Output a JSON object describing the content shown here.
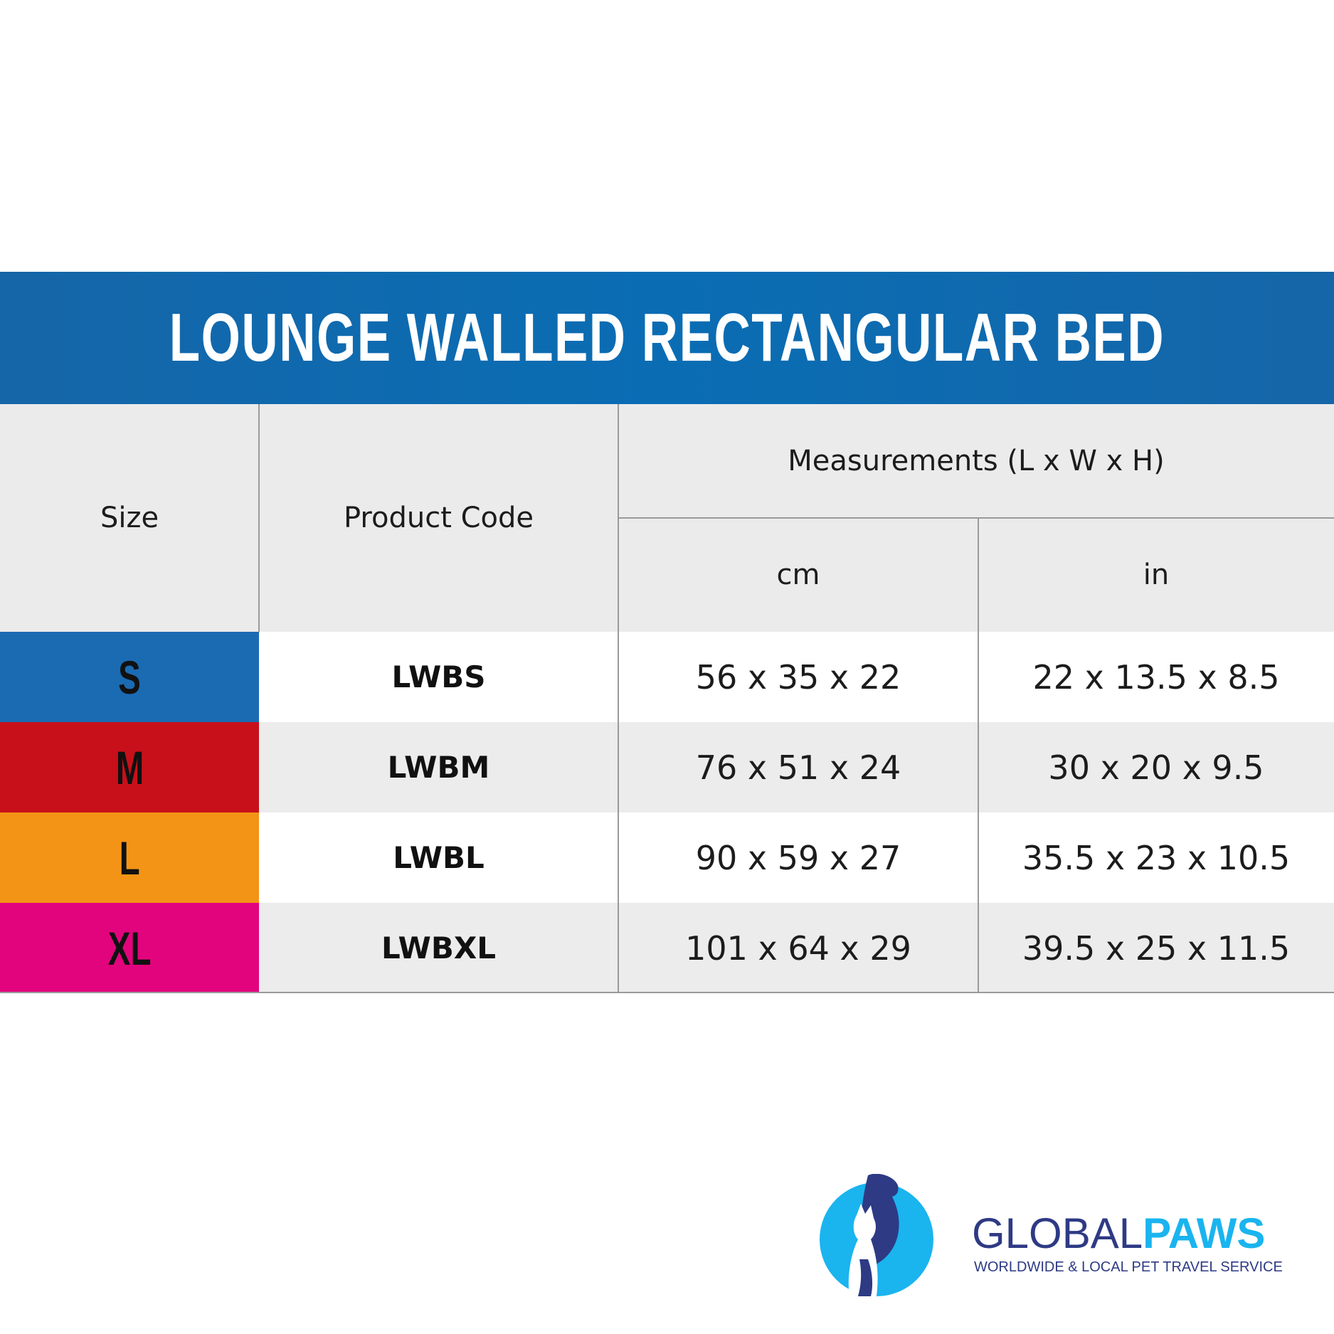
{
  "title": "LOUNGE WALLED RECTANGULAR BED",
  "table": {
    "headers": {
      "size": "Size",
      "product_code": "Product Code",
      "measurements": "Measurements (L x W x H)",
      "cm": "cm",
      "in": "in"
    },
    "rows": [
      {
        "size": "S",
        "code": "LWBS",
        "cm": "56 x 35 x 22",
        "in": "22 x 13.5 x 8.5",
        "color": "#1b6bb3"
      },
      {
        "size": "M",
        "code": "LWBM",
        "cm": "76 x 51 x 24",
        "in": "30 x 20 x 9.5",
        "color": "#c8101a"
      },
      {
        "size": "L",
        "code": "LWBL",
        "cm": "90 x 59 x 27",
        "in": "35.5 x 23 x 10.5",
        "color": "#f39416"
      },
      {
        "size": "XL",
        "code": "LWBXL",
        "cm": "101 x 64 x 29",
        "in": "39.5 x 25 x 11.5",
        "color": "#e2047d"
      }
    ]
  },
  "logo": {
    "brand_part1": "GLOBAL",
    "brand_part2": "PAWS",
    "tagline": "WORLDWIDE & LOCAL PET TRAVEL SERVICE",
    "colors": {
      "navy": "#2e3a84",
      "sky": "#1ab4ef"
    }
  },
  "colors": {
    "banner": "#0a6db4",
    "header_bg": "#ebebeb",
    "row_alt": "#ececec"
  }
}
